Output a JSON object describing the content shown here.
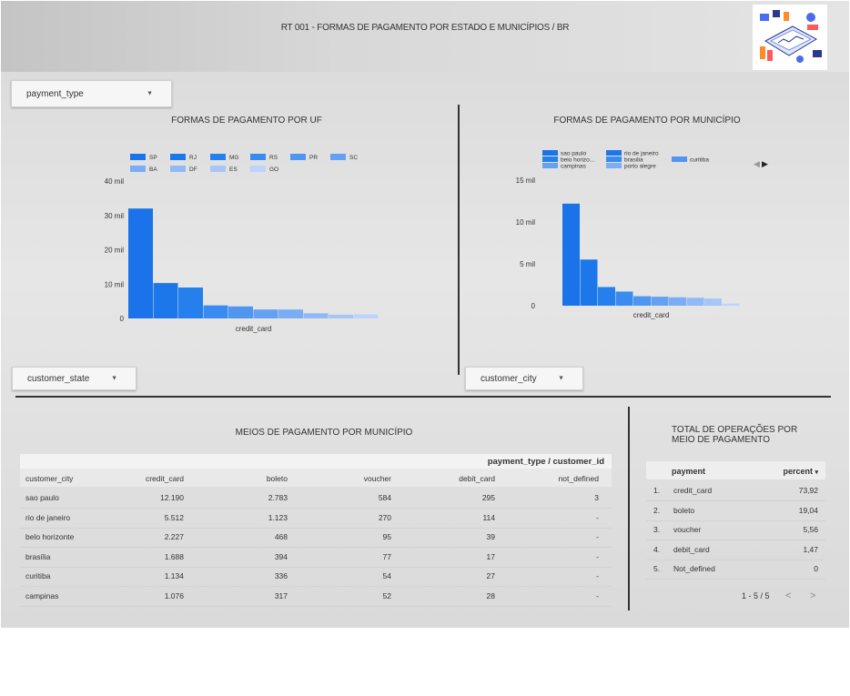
{
  "header": {
    "title": "RT 001 - FORMAS DE PAGAMENTO POR ESTADO E MUNICÍPIOS / BR"
  },
  "controls": {
    "payment_type": "payment_type",
    "customer_state": "customer_state",
    "customer_city": "customer_city"
  },
  "chart_data": [
    {
      "type": "bar",
      "title": "FORMAS DE PAGAMENTO POR  UF",
      "xlabel": "credit_card",
      "ylim": [
        0,
        40000
      ],
      "yticks": [
        "0",
        "10 mil",
        "20 mil",
        "30 mil",
        "40 mil"
      ],
      "legend_position": "top",
      "series": [
        {
          "name": "SP",
          "value": 32000,
          "color": "#1a73e8"
        },
        {
          "name": "RJ",
          "value": 10300,
          "color": "#1c78ea"
        },
        {
          "name": "MG",
          "value": 9000,
          "color": "#2580ed"
        },
        {
          "name": "RS",
          "value": 3800,
          "color": "#3a8bef"
        },
        {
          "name": "PR",
          "value": 3500,
          "color": "#4f96f1"
        },
        {
          "name": "SC",
          "value": 2600,
          "color": "#64a1f3"
        },
        {
          "name": "BA",
          "value": 2600,
          "color": "#7aadf5"
        },
        {
          "name": "DF",
          "value": 1500,
          "color": "#90b9f7"
        },
        {
          "name": "ES",
          "value": 1100,
          "color": "#a6c6f8"
        },
        {
          "name": "GO",
          "value": 1200,
          "color": "#bcd3fa"
        }
      ]
    },
    {
      "type": "bar",
      "title": "FORMAS DE PAGAMENTO  POR MUNICÍPIO",
      "xlabel": "credit_card",
      "ylim": [
        0,
        15000
      ],
      "yticks": [
        "0",
        "5 mil",
        "10 mil",
        "15 mil"
      ],
      "legend_position": "top",
      "series": [
        {
          "name": "sao paulo",
          "value": 12190,
          "color": "#1a73e8"
        },
        {
          "name": "rio de janeiro",
          "value": 5512,
          "color": "#1c78ea"
        },
        {
          "name": "belo horizo...",
          "value": 2227,
          "color": "#2580ed"
        },
        {
          "name": "brasilia",
          "value": 1688,
          "color": "#3a8bef"
        },
        {
          "name": "curitiba",
          "value": 1134,
          "color": "#4f96f1"
        },
        {
          "name": "campinas",
          "value": 1076,
          "color": "#64a1f3"
        },
        {
          "name": "porto alegre",
          "value": 1000,
          "color": "#7aadf5"
        },
        {
          "name": "",
          "value": 950,
          "color": "#90b9f7"
        },
        {
          "name": "",
          "value": 850,
          "color": "#a6c6f8"
        },
        {
          "name": "",
          "value": 250,
          "color": "#bcd3fa"
        }
      ]
    }
  ],
  "cities_table": {
    "title": "MEIOS DE PAGAMENTO POR MUNICÍPIO",
    "group_header": "payment_type / customer_id",
    "columns": [
      "customer_city",
      "credit_card",
      "boleto",
      "voucher",
      "debit_card",
      "not_defined"
    ],
    "rows": [
      [
        "sao paulo",
        "12.190",
        "2.783",
        "584",
        "295",
        "3"
      ],
      [
        "rio de janeiro",
        "5.512",
        "1.123",
        "270",
        "114",
        "-"
      ],
      [
        "belo horizonte",
        "2.227",
        "468",
        "95",
        "39",
        "-"
      ],
      [
        "brasília",
        "1.688",
        "394",
        "77",
        "17",
        "-"
      ],
      [
        "curitiba",
        "1.134",
        "336",
        "54",
        "27",
        "-"
      ],
      [
        "campinas",
        "1.076",
        "317",
        "52",
        "28",
        "-"
      ]
    ]
  },
  "totals_table": {
    "title_line1": "TOTAL DE OPERAÇÕES POR",
    "title_line2": "MEIO DE PAGAMENTO",
    "col_payment": "payment",
    "col_percent": "percent",
    "sort_icon": "▾",
    "rows": [
      [
        "1.",
        "credit_card",
        "73,92"
      ],
      [
        "2.",
        "boleto",
        "19,04"
      ],
      [
        "3.",
        "voucher",
        "5,56"
      ],
      [
        "4.",
        "debit_card",
        "1,47"
      ],
      [
        "5.",
        "Not_defined",
        "0"
      ]
    ],
    "pagination": "1 - 5 / 5",
    "prev": "<",
    "next": ">"
  }
}
